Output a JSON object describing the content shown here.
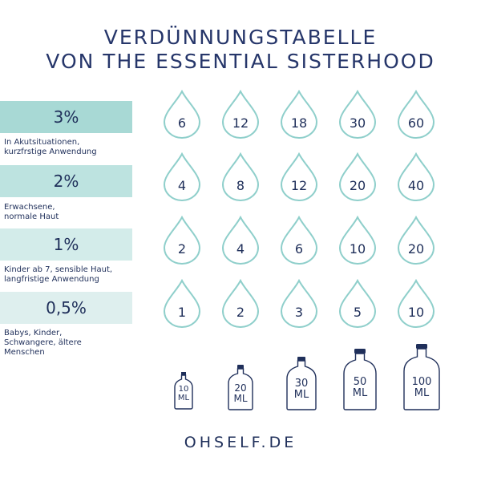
{
  "title": {
    "line1": "VERDÜNNUNGSTABELLE",
    "line2": "VON THE ESSENTIAL SISTERHOOD"
  },
  "colors": {
    "bar_dark": "#a8d9d5",
    "bar_mid": "#bde3e0",
    "bar_light": "#d3ecea",
    "bar_lightest": "#deefee",
    "drop_outline": "#8fcfcb",
    "text": "#1f2f5a"
  },
  "rows": [
    {
      "percent": "3%",
      "description_lines": [
        "In Akutsituationen,",
        "kurzfrstige Anwendung"
      ],
      "drops": [
        "6",
        "12",
        "18",
        "30",
        "60"
      ]
    },
    {
      "percent": "2%",
      "description_lines": [
        "Erwachsene,",
        "normale Haut"
      ],
      "drops": [
        "4",
        "8",
        "12",
        "20",
        "40"
      ]
    },
    {
      "percent": "1%",
      "description_lines": [
        "Kinder ab 7, sensible Haut,",
        "langfristige Anwendung"
      ],
      "drops": [
        "2",
        "4",
        "6",
        "10",
        "20"
      ]
    },
    {
      "percent": "0,5%",
      "description_lines": [
        "Babys, Kinder,",
        "Schwangere, ältere",
        "Menschen"
      ],
      "drops": [
        "1",
        "2",
        "3",
        "5",
        "10"
      ]
    }
  ],
  "bottles": [
    {
      "amount": "10",
      "unit": "ML",
      "icon": "bottle-icon"
    },
    {
      "amount": "20",
      "unit": "ML",
      "icon": "bottle-icon"
    },
    {
      "amount": "30",
      "unit": "ML",
      "icon": "bottle-icon"
    },
    {
      "amount": "50",
      "unit": "ML",
      "icon": "bottle-icon"
    },
    {
      "amount": "100",
      "unit": "ML",
      "icon": "bottle-icon"
    }
  ],
  "footer": "OHSELF.DE"
}
